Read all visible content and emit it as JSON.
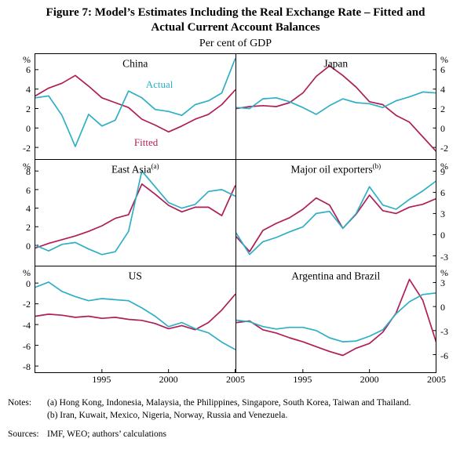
{
  "figure": {
    "title_line1": "Figure 7: Model’s Estimates Including the Real Exchange Rate – Fitted and",
    "title_line2": "Actual Current Account Balances",
    "subtitle": "Per cent of GDP"
  },
  "notes": {
    "label": "Notes:",
    "lines": [
      "(a) Hong Kong, Indonesia, Malaysia, the Philippines, Singapore, South Korea, Taiwan and Thailand.",
      "(b) Iran, Kuwait, Mexico, Nigeria, Norway, Russia and Venezuela."
    ],
    "sources_label": "Sources:",
    "sources_text": "IMF, WEO; authors’ calculations"
  },
  "chart_data": {
    "type": "line",
    "unit": "%",
    "x": [
      1990,
      1991,
      1992,
      1993,
      1994,
      1995,
      1996,
      1997,
      1998,
      1999,
      2000,
      2001,
      2002,
      2003,
      2004,
      2005
    ],
    "xticks": [
      1995,
      2000,
      2005
    ],
    "series_labels": {
      "actual": "Actual",
      "fitted": "Fitted"
    },
    "colors": {
      "actual": "#2fafc6",
      "fitted": "#b01e58"
    },
    "panels": [
      {
        "title": "China",
        "marker": "",
        "side": "left",
        "ylim": [
          -3.2,
          7.6
        ],
        "yticks": [
          6,
          4,
          2,
          0,
          -2
        ],
        "xticks": false,
        "actual": [
          3.1,
          3.3,
          1.3,
          -1.9,
          1.4,
          0.2,
          0.8,
          3.8,
          3.1,
          1.9,
          1.7,
          1.3,
          2.4,
          2.8,
          3.6,
          7.1
        ],
        "fitted": [
          3.3,
          4.1,
          4.6,
          5.4,
          4.3,
          3.1,
          2.6,
          2.1,
          0.9,
          0.3,
          -0.4,
          0.2,
          0.9,
          1.4,
          2.4,
          3.9
        ],
        "labels": [
          {
            "series": "actual",
            "text": "Actual",
            "x": 1999.3,
            "y": 4.5
          },
          {
            "series": "fitted",
            "text": "Fitted",
            "x": 1998.3,
            "y": -1.5
          }
        ]
      },
      {
        "title": "Japan",
        "marker": "",
        "side": "right",
        "ylim": [
          -3.2,
          7.6
        ],
        "yticks": [
          6,
          4,
          2,
          0,
          -2
        ],
        "xticks": false,
        "actual": [
          2.1,
          2.0,
          3.0,
          3.1,
          2.7,
          2.1,
          1.4,
          2.3,
          3.0,
          2.6,
          2.5,
          2.1,
          2.8,
          3.2,
          3.7,
          3.6
        ],
        "fitted": [
          2.0,
          2.2,
          2.3,
          2.2,
          2.6,
          3.6,
          5.3,
          6.4,
          5.4,
          4.2,
          2.7,
          2.4,
          1.3,
          0.6,
          -0.9,
          -2.4
        ],
        "labels": []
      },
      {
        "title": "East Asia",
        "marker": "(a)",
        "side": "left",
        "ylim": [
          -2.2,
          9.2
        ],
        "yticks": [
          8,
          6,
          4,
          2,
          0
        ],
        "xticks": false,
        "actual": [
          0.0,
          -0.6,
          0.1,
          0.3,
          -0.4,
          -1.0,
          -0.7,
          1.5,
          8.0,
          6.3,
          4.6,
          4.0,
          4.4,
          5.8,
          6.0,
          5.3
        ],
        "fitted": [
          -0.3,
          0.2,
          0.6,
          1.0,
          1.5,
          2.1,
          2.9,
          3.3,
          6.6,
          5.5,
          4.3,
          3.6,
          4.1,
          4.1,
          3.2,
          6.4
        ],
        "labels": []
      },
      {
        "title": "Major oil exporters",
        "marker": "(b)",
        "side": "right",
        "ylim": [
          -4.4,
          10.6
        ],
        "yticks": [
          9,
          6,
          3,
          0,
          -3
        ],
        "xticks": false,
        "actual": [
          0.2,
          -2.8,
          -1.0,
          -0.4,
          0.4,
          1.1,
          3.0,
          3.3,
          0.9,
          3.0,
          6.8,
          4.2,
          3.6,
          5.0,
          6.2,
          7.6
        ],
        "fitted": [
          -0.3,
          -2.4,
          0.6,
          1.6,
          2.4,
          3.6,
          5.2,
          4.2,
          0.9,
          2.9,
          5.6,
          3.4,
          3.0,
          3.9,
          4.3,
          5.1
        ],
        "labels": []
      },
      {
        "title": "US",
        "marker": "",
        "side": "left",
        "ylim": [
          -8.6,
          1.6
        ],
        "yticks": [
          0,
          -2,
          -4,
          -6,
          -8
        ],
        "xticks": true,
        "actual": [
          -0.4,
          0.1,
          -0.8,
          -1.3,
          -1.7,
          -1.5,
          -1.6,
          -1.7,
          -2.4,
          -3.2,
          -4.2,
          -3.8,
          -4.4,
          -4.8,
          -5.7,
          -6.4
        ],
        "fitted": [
          -3.2,
          -3.0,
          -3.1,
          -3.3,
          -3.2,
          -3.4,
          -3.3,
          -3.5,
          -3.6,
          -3.9,
          -4.4,
          -4.1,
          -4.5,
          -3.8,
          -2.6,
          -1.1
        ],
        "labels": []
      },
      {
        "title": "Argentina and Brazil",
        "marker": "",
        "side": "right",
        "ylim": [
          -8.2,
          5.0
        ],
        "yticks": [
          3,
          0,
          -3,
          -6
        ],
        "xticks": true,
        "actual": [
          -1.7,
          -1.9,
          -2.5,
          -2.8,
          -2.6,
          -2.6,
          -3.0,
          -3.9,
          -4.4,
          -4.3,
          -3.7,
          -2.9,
          -0.9,
          0.6,
          1.5,
          1.7
        ],
        "fitted": [
          -2.0,
          -1.8,
          -2.9,
          -3.3,
          -3.9,
          -4.4,
          -5.0,
          -5.6,
          -6.1,
          -5.2,
          -4.6,
          -3.2,
          -0.8,
          3.4,
          0.8,
          -4.4
        ],
        "labels": []
      }
    ]
  }
}
